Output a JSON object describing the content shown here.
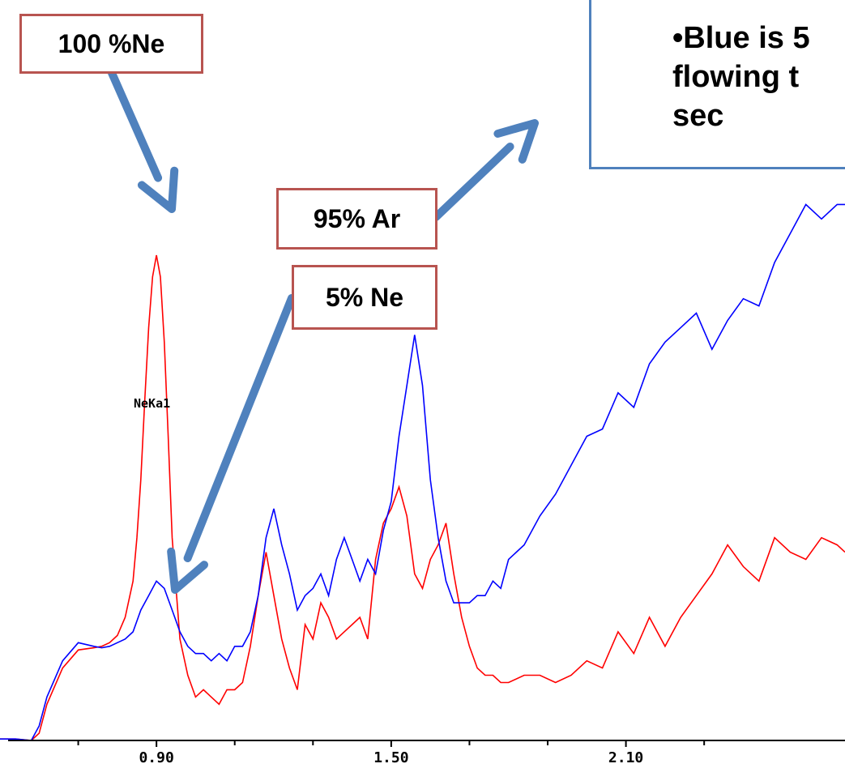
{
  "callouts": {
    "ne100": "100 %Ne",
    "ar95": "95% Ar",
    "ne5": "5% Ne"
  },
  "note": "•Blue is 5\nflowing t\nsec",
  "peak_label": "NeKa1",
  "colors": {
    "red": "#ff0000",
    "blue": "#0000ff",
    "arrow": "#4f81bd",
    "callout_border": "#b85450"
  },
  "chart_data": {
    "type": "line",
    "xlim": [
      0.5,
      2.66
    ],
    "ylim": [
      0,
      1
    ],
    "x_ticks": [
      0.9,
      1.5,
      2.1
    ],
    "x_tick_labels": [
      "0.90",
      "1.50",
      "2.10"
    ],
    "grid": false,
    "series": [
      {
        "color": "red",
        "x": [
          0.5,
          0.54,
          0.58,
          0.6,
          0.62,
          0.66,
          0.7,
          0.74,
          0.76,
          0.78,
          0.8,
          0.82,
          0.84,
          0.85,
          0.86,
          0.87,
          0.88,
          0.89,
          0.9,
          0.91,
          0.92,
          0.93,
          0.94,
          0.96,
          0.98,
          1.0,
          1.02,
          1.04,
          1.06,
          1.08,
          1.1,
          1.12,
          1.14,
          1.16,
          1.18,
          1.2,
          1.22,
          1.24,
          1.26,
          1.28,
          1.3,
          1.32,
          1.34,
          1.36,
          1.38,
          1.4,
          1.42,
          1.44,
          1.46,
          1.48,
          1.5,
          1.52,
          1.54,
          1.56,
          1.58,
          1.6,
          1.62,
          1.64,
          1.66,
          1.68,
          1.7,
          1.72,
          1.74,
          1.76,
          1.78,
          1.8,
          1.84,
          1.88,
          1.92,
          1.96,
          2.0,
          2.04,
          2.08,
          2.12,
          2.16,
          2.2,
          2.24,
          2.28,
          2.32,
          2.36,
          2.4,
          2.44,
          2.48,
          2.52,
          2.56,
          2.6,
          2.64,
          2.66
        ],
        "y": [
          0.002,
          0.002,
          0.0,
          0.01,
          0.05,
          0.1,
          0.125,
          0.128,
          0.13,
          0.135,
          0.145,
          0.17,
          0.22,
          0.28,
          0.36,
          0.47,
          0.57,
          0.64,
          0.67,
          0.64,
          0.55,
          0.42,
          0.28,
          0.14,
          0.09,
          0.06,
          0.07,
          0.06,
          0.05,
          0.07,
          0.07,
          0.08,
          0.13,
          0.2,
          0.26,
          0.2,
          0.14,
          0.1,
          0.07,
          0.16,
          0.14,
          0.19,
          0.17,
          0.14,
          0.15,
          0.16,
          0.17,
          0.14,
          0.25,
          0.3,
          0.32,
          0.35,
          0.31,
          0.23,
          0.21,
          0.25,
          0.27,
          0.3,
          0.23,
          0.17,
          0.13,
          0.1,
          0.09,
          0.09,
          0.08,
          0.08,
          0.09,
          0.09,
          0.08,
          0.09,
          0.11,
          0.1,
          0.15,
          0.12,
          0.17,
          0.13,
          0.17,
          0.2,
          0.23,
          0.27,
          0.24,
          0.22,
          0.28,
          0.26,
          0.25,
          0.28,
          0.27,
          0.26
        ]
      },
      {
        "color": "blue",
        "x": [
          0.5,
          0.54,
          0.58,
          0.6,
          0.62,
          0.66,
          0.7,
          0.74,
          0.76,
          0.78,
          0.8,
          0.82,
          0.84,
          0.86,
          0.88,
          0.9,
          0.92,
          0.94,
          0.96,
          0.98,
          1.0,
          1.02,
          1.04,
          1.06,
          1.08,
          1.1,
          1.12,
          1.14,
          1.16,
          1.18,
          1.2,
          1.22,
          1.24,
          1.26,
          1.28,
          1.3,
          1.32,
          1.34,
          1.36,
          1.38,
          1.4,
          1.42,
          1.44,
          1.46,
          1.48,
          1.5,
          1.52,
          1.54,
          1.56,
          1.58,
          1.6,
          1.62,
          1.64,
          1.66,
          1.68,
          1.7,
          1.72,
          1.74,
          1.76,
          1.78,
          1.8,
          1.84,
          1.88,
          1.92,
          1.96,
          2.0,
          2.04,
          2.08,
          2.12,
          2.16,
          2.2,
          2.24,
          2.28,
          2.32,
          2.36,
          2.4,
          2.44,
          2.48,
          2.52,
          2.56,
          2.6,
          2.64,
          2.66
        ],
        "y": [
          0.002,
          0.002,
          0.0,
          0.02,
          0.06,
          0.11,
          0.135,
          0.13,
          0.128,
          0.13,
          0.135,
          0.14,
          0.15,
          0.18,
          0.2,
          0.22,
          0.21,
          0.18,
          0.15,
          0.13,
          0.12,
          0.12,
          0.11,
          0.12,
          0.11,
          0.13,
          0.13,
          0.15,
          0.2,
          0.28,
          0.32,
          0.27,
          0.23,
          0.18,
          0.2,
          0.21,
          0.23,
          0.2,
          0.25,
          0.28,
          0.25,
          0.22,
          0.25,
          0.23,
          0.29,
          0.33,
          0.42,
          0.49,
          0.56,
          0.49,
          0.36,
          0.28,
          0.22,
          0.19,
          0.19,
          0.19,
          0.2,
          0.2,
          0.22,
          0.21,
          0.25,
          0.27,
          0.31,
          0.34,
          0.38,
          0.42,
          0.43,
          0.48,
          0.46,
          0.52,
          0.55,
          0.57,
          0.59,
          0.54,
          0.58,
          0.61,
          0.6,
          0.66,
          0.7,
          0.74,
          0.72,
          0.74,
          0.74
        ]
      }
    ]
  }
}
